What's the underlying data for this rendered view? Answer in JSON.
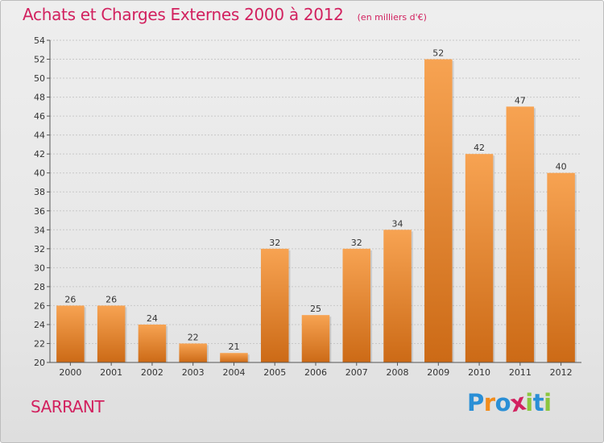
{
  "header": {
    "title": "Achats et Charges Externes 2000 à 2012",
    "unit": "(en milliers d'€)"
  },
  "commune": "SARRANT",
  "logo": {
    "text": "Proxiti",
    "letters": [
      {
        "char": "P",
        "color": "#2a8fd6"
      },
      {
        "char": "r",
        "color": "#f28c1b"
      },
      {
        "char": "o",
        "color": "#2a8fd6"
      },
      {
        "char": "x",
        "color": "#d2215f"
      },
      {
        "char": "i",
        "color": "#8cc63f"
      },
      {
        "char": "t",
        "color": "#2a8fd6"
      },
      {
        "char": "i",
        "color": "#8cc63f"
      }
    ]
  },
  "chart_data": {
    "type": "bar",
    "title": "Achats et Charges Externes 2000 à 2012",
    "subtitle": "(en milliers d'€)",
    "xlabel": "",
    "ylabel": "",
    "categories": [
      "2000",
      "2001",
      "2002",
      "2003",
      "2004",
      "2005",
      "2006",
      "2007",
      "2008",
      "2009",
      "2010",
      "2011",
      "2012"
    ],
    "values": [
      26,
      26,
      24,
      22,
      21,
      32,
      25,
      32,
      34,
      52,
      42,
      47,
      40
    ],
    "ylim": [
      20,
      54
    ],
    "yticks": [
      20,
      22,
      24,
      26,
      28,
      30,
      32,
      34,
      36,
      38,
      40,
      42,
      44,
      46,
      48,
      50,
      52,
      54
    ],
    "grid": true,
    "legend": "none",
    "colors": {
      "bar_top": "#f7a352",
      "bar_bottom": "#cc6a16",
      "grid": "#c8c8c8",
      "axis": "#555555"
    }
  }
}
